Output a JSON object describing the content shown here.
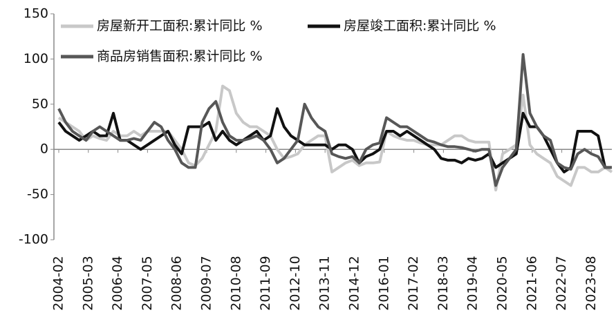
{
  "chart_data": {
    "type": "line",
    "x": [
      "2004-02",
      "2004-05",
      "2004-08",
      "2004-11",
      "2005-02",
      "2005-05",
      "2005-08",
      "2005-11",
      "2006-02",
      "2006-05",
      "2006-08",
      "2006-11",
      "2007-02",
      "2007-05",
      "2007-08",
      "2007-11",
      "2008-02",
      "2008-05",
      "2008-08",
      "2008-11",
      "2009-02",
      "2009-05",
      "2009-08",
      "2009-11",
      "2010-02",
      "2010-05",
      "2010-08",
      "2010-11",
      "2011-02",
      "2011-05",
      "2011-08",
      "2011-11",
      "2012-02",
      "2012-05",
      "2012-08",
      "2012-11",
      "2013-02",
      "2013-05",
      "2013-08",
      "2013-11",
      "2014-02",
      "2014-05",
      "2014-08",
      "2014-11",
      "2015-02",
      "2015-05",
      "2015-08",
      "2015-11",
      "2016-02",
      "2016-05",
      "2016-08",
      "2016-11",
      "2017-02",
      "2017-05",
      "2017-08",
      "2017-11",
      "2018-02",
      "2018-05",
      "2018-08",
      "2018-11",
      "2019-02",
      "2019-05",
      "2019-08",
      "2019-11",
      "2020-02",
      "2020-05",
      "2020-08",
      "2020-11",
      "2021-02",
      "2021-05",
      "2021-08",
      "2021-11",
      "2022-02",
      "2022-05",
      "2022-08",
      "2022-11",
      "2023-02",
      "2023-05",
      "2023-08",
      "2023-11",
      "2024-02",
      "2024-05"
    ],
    "series": [
      {
        "name": "房屋新开工面积:累计同比 %",
        "color": "#c8c8c8",
        "values": [
          35,
          30,
          25,
          20,
          10,
          15,
          12,
          10,
          20,
          15,
          15,
          20,
          15,
          20,
          20,
          20,
          20,
          10,
          0,
          -15,
          -18,
          -10,
          5,
          20,
          70,
          65,
          40,
          30,
          25,
          25,
          20,
          15,
          0,
          -10,
          -8,
          -5,
          5,
          10,
          15,
          15,
          -25,
          -20,
          -15,
          -12,
          -18,
          -15,
          -15,
          -14,
          20,
          15,
          12,
          10,
          10,
          7,
          5,
          5,
          5,
          10,
          15,
          15,
          10,
          8,
          8,
          8,
          -45,
          -5,
          0,
          5,
          60,
          5,
          -5,
          -10,
          -15,
          -30,
          -35,
          -40,
          -20,
          -20,
          -25,
          -25,
          -20,
          -25
        ]
      },
      {
        "name": "房屋竣工面积:累计同比 %",
        "color": "#111111",
        "values": [
          30,
          20,
          15,
          10,
          15,
          20,
          15,
          15,
          40,
          10,
          10,
          5,
          0,
          5,
          10,
          15,
          20,
          5,
          -5,
          25,
          25,
          25,
          30,
          10,
          20,
          10,
          5,
          10,
          15,
          20,
          10,
          15,
          45,
          25,
          15,
          10,
          5,
          5,
          5,
          5,
          0,
          5,
          5,
          0,
          -15,
          -8,
          -5,
          0,
          20,
          20,
          15,
          20,
          15,
          10,
          5,
          0,
          -10,
          -12,
          -12,
          -15,
          -10,
          -12,
          -10,
          -5,
          -20,
          -15,
          -10,
          -5,
          40,
          25,
          25,
          15,
          0,
          -15,
          -25,
          -20,
          20,
          20,
          20,
          15,
          -20,
          -20
        ]
      },
      {
        "name": "商品房销售面积:累计同比 %",
        "color": "#575757",
        "values": [
          45,
          30,
          20,
          15,
          10,
          20,
          25,
          20,
          15,
          10,
          10,
          12,
          10,
          20,
          30,
          25,
          10,
          0,
          -15,
          -20,
          -20,
          30,
          45,
          53,
          30,
          15,
          10,
          10,
          12,
          15,
          10,
          0,
          -15,
          -10,
          0,
          10,
          50,
          35,
          25,
          20,
          -5,
          -8,
          -10,
          -8,
          -15,
          0,
          5,
          7,
          35,
          30,
          25,
          25,
          20,
          15,
          10,
          8,
          5,
          3,
          3,
          2,
          0,
          -2,
          0,
          0,
          -40,
          -20,
          -10,
          0,
          105,
          40,
          25,
          15,
          10,
          -15,
          -20,
          -22,
          -5,
          0,
          -5,
          -8,
          -20,
          -20
        ]
      }
    ],
    "xlim": [
      "2004-02",
      "2024-05"
    ],
    "xticks": [
      "2004-02",
      "2005-03",
      "2006-04",
      "2007-05",
      "2008-06",
      "2009-07",
      "2010-08",
      "2011-09",
      "2012-10",
      "2013-11",
      "2014-12",
      "2016-01",
      "2017-02",
      "2018-03",
      "2019-04",
      "2020-05",
      "2021-06",
      "2022-07",
      "2023-08"
    ],
    "ylim": [
      -100,
      150
    ],
    "yticks": [
      150,
      100,
      50,
      0,
      -50,
      -100
    ],
    "grid": false
  }
}
